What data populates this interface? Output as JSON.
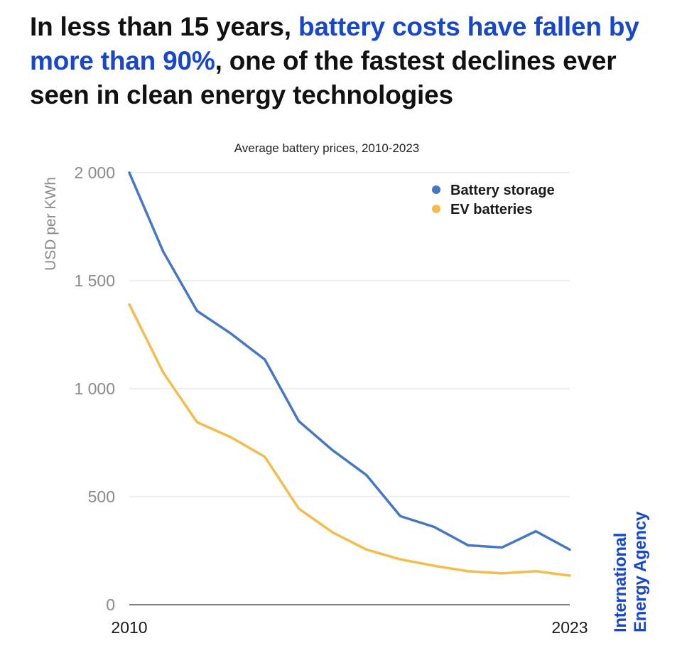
{
  "headline": {
    "part1": "In less than 15 years, ",
    "highlight": "battery costs have fallen by more than 90%",
    "part2": ", one of the fastest declines ever seen in clean energy technologies"
  },
  "brand": {
    "line1": "International",
    "line2": "Energy Agency"
  },
  "colors": {
    "highlight": "#1746cf",
    "battery_storage": "#4577c4",
    "ev_batteries": "#f2bd4a"
  },
  "chart_data": {
    "type": "line",
    "title": "Average battery prices, 2010-2023",
    "ylabel": "USD per KWh",
    "xlabel": "",
    "x": [
      2010,
      2011,
      2012,
      2013,
      2014,
      2015,
      2016,
      2017,
      2018,
      2019,
      2020,
      2021,
      2022,
      2023
    ],
    "x_tick_labels": [
      "2010",
      "2023"
    ],
    "y_ticks": [
      0,
      500,
      1000,
      1500,
      2000
    ],
    "y_tick_labels": [
      "0",
      "500",
      "1 000",
      "1 500",
      "2 000"
    ],
    "ylim": [
      0,
      2000
    ],
    "grid": true,
    "legend_position": "top-right",
    "series": [
      {
        "name": "Battery storage",
        "color": "#4577c4",
        "values": [
          2000,
          1635,
          1360,
          1255,
          1135,
          850,
          715,
          600,
          410,
          360,
          275,
          265,
          340,
          255
        ]
      },
      {
        "name": "EV batteries",
        "color": "#f2bd4a",
        "values": [
          1390,
          1075,
          845,
          775,
          685,
          445,
          335,
          255,
          210,
          180,
          155,
          145,
          155,
          135
        ]
      }
    ]
  }
}
